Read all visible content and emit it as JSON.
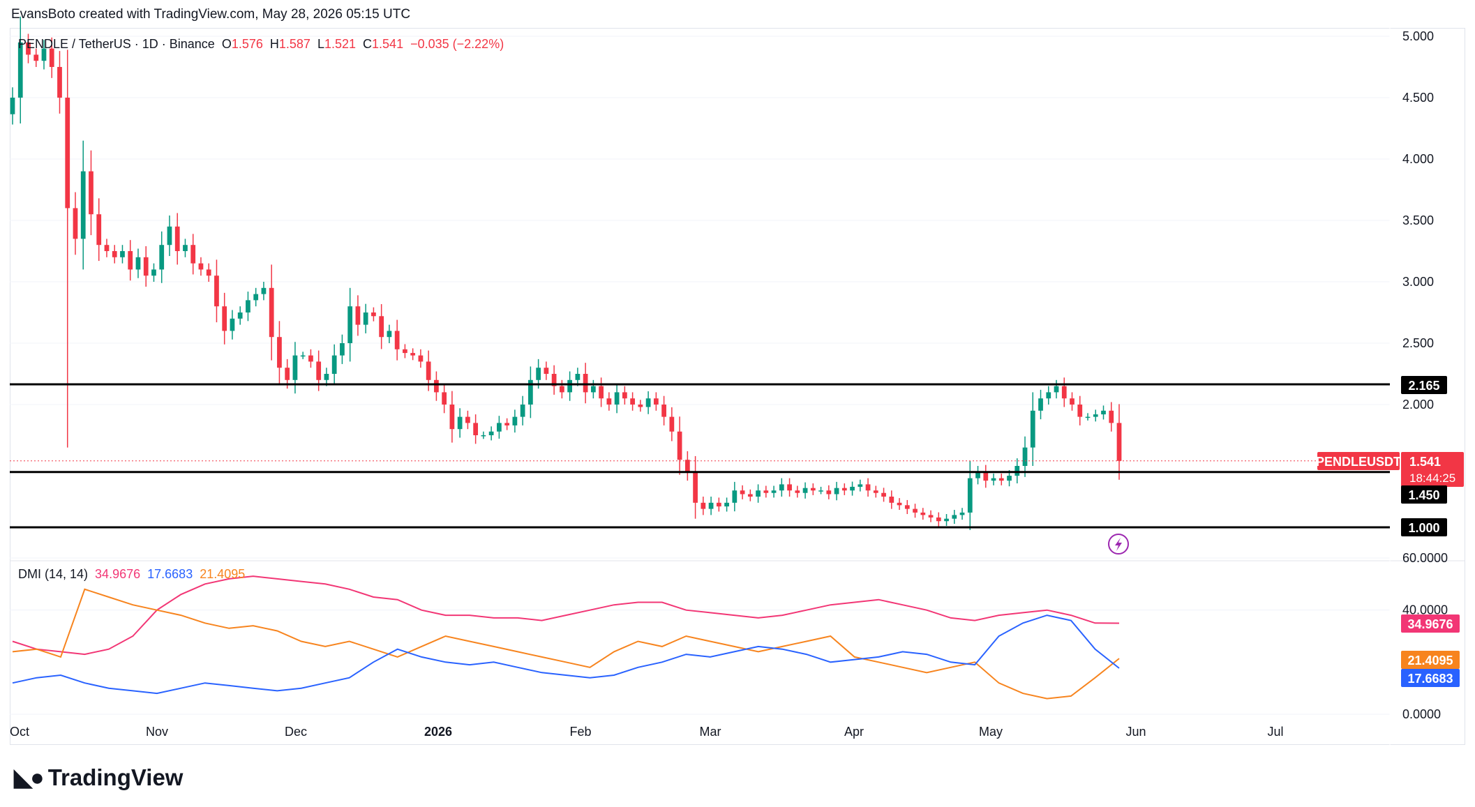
{
  "header": {
    "attribution": "EvansBoto created with TradingView.com, May 28, 2026 05:15 UTC"
  },
  "legend": {
    "symbol": "PENDLE / TetherUS · 1D · Binance",
    "o_label": "O",
    "o_value": "1.576",
    "h_label": "H",
    "h_value": "1.587",
    "l_label": "L",
    "l_value": "1.521",
    "c_label": "C",
    "c_value": "1.541",
    "change": "−0.035 (−2.22%)"
  },
  "dmi_legend": {
    "name": "DMI (14, 14)",
    "adx": "34.9676",
    "plus_di": "17.6683",
    "minus_di": "21.4095"
  },
  "price_axis": [
    "5.000",
    "4.500",
    "4.000",
    "3.500",
    "3.000",
    "2.500",
    "2.000"
  ],
  "dmi_axis": [
    "60.0000",
    "40.0000",
    "0.0000"
  ],
  "time_axis": [
    "Oct",
    "Nov",
    "Dec",
    "2026",
    "Feb",
    "Mar",
    "Apr",
    "May",
    "Jun",
    "Jul"
  ],
  "tags": {
    "level_top": "2.165",
    "level_mid": "1.450",
    "level_low": "1.000",
    "symbol_tag": "PENDLEUSDT",
    "last_price": "1.541",
    "countdown": "18:44:25",
    "adx_tag": "34.9676",
    "minus_tag": "21.4095",
    "plus_tag": "17.6683"
  },
  "colors": {
    "up": "#089981",
    "down": "#f23645",
    "adx": "#f23675",
    "plus_di": "#2962ff",
    "minus_di": "#f7841e",
    "level": "#000000"
  },
  "footer": {
    "brand": "TradingView"
  },
  "chart_data": [
    {
      "type": "candlestick",
      "title": "PENDLE / TetherUS · 1D · Binance",
      "x_range": [
        "Oct",
        "Jul"
      ],
      "ylim": [
        0.9,
        5.05
      ],
      "support_resistance": [
        2.165,
        1.45,
        1.0
      ],
      "last_price": 1.541,
      "closes": [
        4.5,
        4.95,
        4.85,
        4.8,
        4.9,
        4.75,
        4.5,
        3.6,
        3.35,
        3.9,
        3.55,
        3.3,
        3.25,
        3.2,
        3.25,
        3.1,
        3.2,
        3.05,
        3.1,
        3.3,
        3.45,
        3.25,
        3.3,
        3.15,
        3.1,
        3.05,
        2.8,
        2.6,
        2.7,
        2.75,
        2.85,
        2.9,
        2.95,
        2.55,
        2.3,
        2.2,
        2.4,
        2.4,
        2.35,
        2.2,
        2.25,
        2.4,
        2.5,
        2.8,
        2.65,
        2.75,
        2.72,
        2.55,
        2.6,
        2.45,
        2.42,
        2.4,
        2.35,
        2.2,
        2.1,
        2.0,
        1.8,
        1.9,
        1.85,
        1.75,
        1.75,
        1.78,
        1.85,
        1.83,
        1.9,
        2.0,
        2.2,
        2.3,
        2.25,
        2.15,
        2.1,
        2.2,
        2.25,
        2.1,
        2.15,
        2.05,
        2.0,
        2.1,
        2.05,
        2.0,
        1.98,
        2.05,
        2.0,
        1.9,
        1.78,
        1.55,
        1.45,
        1.2,
        1.15,
        1.2,
        1.17,
        1.2,
        1.3,
        1.27,
        1.25,
        1.3,
        1.28,
        1.3,
        1.35,
        1.3,
        1.28,
        1.32,
        1.3,
        1.3,
        1.27,
        1.32,
        1.3,
        1.33,
        1.35,
        1.3,
        1.28,
        1.25,
        1.2,
        1.18,
        1.15,
        1.12,
        1.1,
        1.08,
        1.05,
        1.07,
        1.1,
        1.12,
        1.4,
        1.45,
        1.38,
        1.4,
        1.38,
        1.42,
        1.5,
        1.65,
        1.95,
        2.05,
        2.1,
        2.15,
        2.05,
        2.0,
        1.9,
        1.9,
        1.92,
        1.95,
        1.85,
        1.541
      ],
      "dmi": {
        "adx": [
          28,
          25,
          24,
          23,
          25,
          30,
          40,
          46,
          50,
          52,
          53,
          52,
          51,
          50,
          48,
          45,
          44,
          40,
          38,
          38,
          37,
          37,
          36,
          38,
          40,
          42,
          43,
          43,
          40,
          39,
          38,
          37,
          38,
          40,
          42,
          43,
          44,
          42,
          40,
          37,
          36,
          38,
          39,
          40,
          38,
          35,
          34.9676
        ],
        "plus_di": [
          12,
          14,
          15,
          12,
          10,
          9,
          8,
          10,
          12,
          11,
          10,
          9,
          10,
          12,
          14,
          20,
          25,
          22,
          20,
          19,
          20,
          18,
          16,
          15,
          14,
          15,
          18,
          20,
          23,
          22,
          24,
          26,
          25,
          23,
          20,
          21,
          22,
          24,
          23,
          20,
          19,
          30,
          35,
          38,
          36,
          25,
          17.6683
        ],
        "minus_di": [
          24,
          25,
          22,
          48,
          45,
          42,
          40,
          38,
          35,
          33,
          34,
          32,
          28,
          26,
          28,
          25,
          22,
          26,
          30,
          28,
          26,
          24,
          22,
          20,
          18,
          24,
          28,
          26,
          30,
          28,
          26,
          24,
          26,
          28,
          30,
          22,
          20,
          18,
          16,
          18,
          20,
          12,
          8,
          6,
          7,
          14,
          21.4095
        ]
      }
    }
  ]
}
